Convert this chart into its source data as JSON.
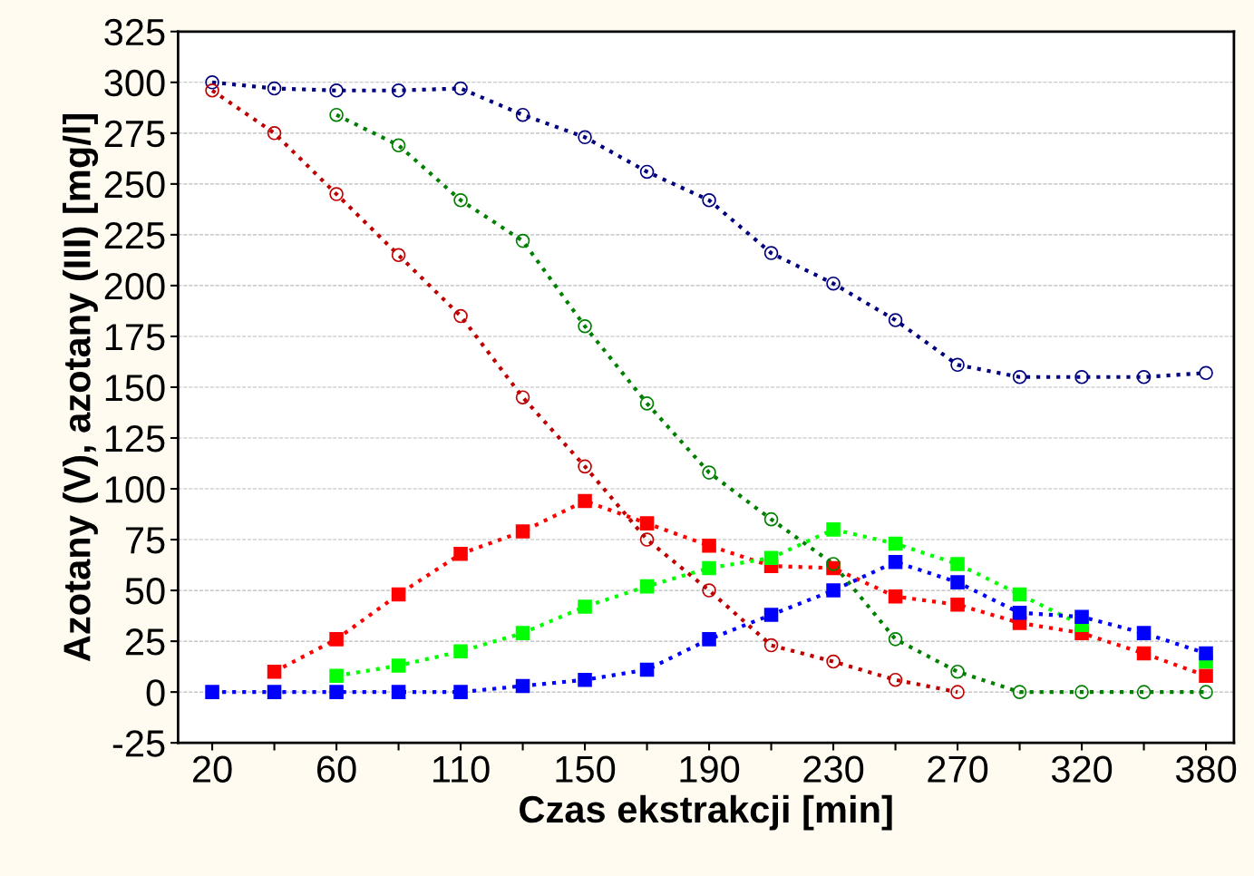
{
  "chart_data": {
    "type": "line",
    "xlabel": "Czas ekstrakcji [min]",
    "ylabel": "Azotany (V), azotany (III) [mg/l]",
    "categories": [
      "20",
      null,
      "60",
      null,
      "110",
      null,
      "150",
      null,
      "190",
      null,
      "230",
      null,
      "270",
      null,
      "320",
      null,
      "380"
    ],
    "ylim": [
      -25,
      325
    ],
    "yticks": [
      -25,
      0,
      25,
      50,
      75,
      100,
      125,
      150,
      175,
      200,
      225,
      250,
      275,
      300,
      325
    ],
    "grid": "y",
    "legend": false,
    "line_style": "dotted",
    "series": [
      {
        "color": "#00007f",
        "marker": "circle",
        "values": [
          300,
          297,
          296,
          296,
          297,
          284,
          273,
          256,
          242,
          216,
          201,
          183,
          161,
          155,
          155,
          155,
          157
        ]
      },
      {
        "color": "#007f00",
        "marker": "circle",
        "values": [
          null,
          null,
          284,
          269,
          242,
          222,
          180,
          142,
          108,
          85,
          63,
          26,
          10,
          0,
          0,
          0,
          0
        ]
      },
      {
        "color": "#bf0000",
        "marker": "circle",
        "values": [
          296,
          275,
          245,
          215,
          185,
          145,
          111,
          75,
          50,
          23,
          15,
          6,
          0,
          null,
          null,
          null,
          null
        ]
      },
      {
        "color": "#ff0000",
        "marker": "square",
        "values": [
          null,
          10,
          26,
          48,
          68,
          79,
          94,
          83,
          72,
          62,
          61,
          47,
          43,
          34,
          29,
          19,
          8
        ]
      },
      {
        "color": "#00ff00",
        "marker": "square",
        "values": [
          null,
          null,
          8,
          13,
          20,
          29,
          42,
          52,
          61,
          66,
          80,
          73,
          63,
          48,
          33,
          null,
          15
        ]
      },
      {
        "color": "#0000ff",
        "marker": "square",
        "values": [
          0,
          0,
          0,
          0,
          0,
          3,
          6,
          11,
          26,
          38,
          50,
          64,
          54,
          39,
          37,
          29,
          19
        ]
      }
    ]
  }
}
